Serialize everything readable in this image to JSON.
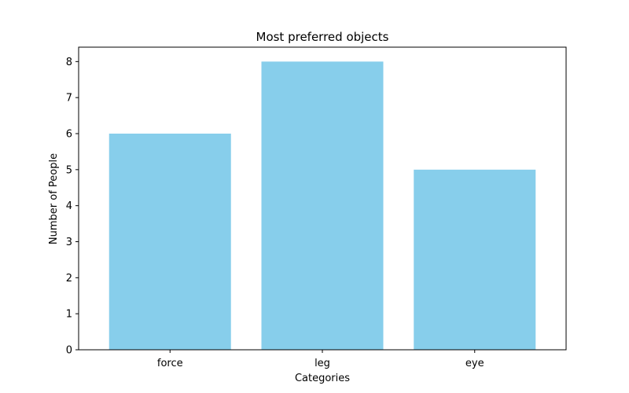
{
  "chart_data": {
    "type": "bar",
    "title": "Most preferred objects",
    "xlabel": "Categories",
    "ylabel": "Number of People",
    "categories": [
      "force",
      "leg",
      "eye"
    ],
    "values": [
      6,
      8,
      5
    ],
    "ylim": [
      0,
      8.4
    ],
    "yticks": [
      "0",
      "1",
      "2",
      "3",
      "4",
      "5",
      "6",
      "7",
      "8"
    ],
    "bar_color": "#87CEEB",
    "grid": false,
    "legend": "none"
  }
}
